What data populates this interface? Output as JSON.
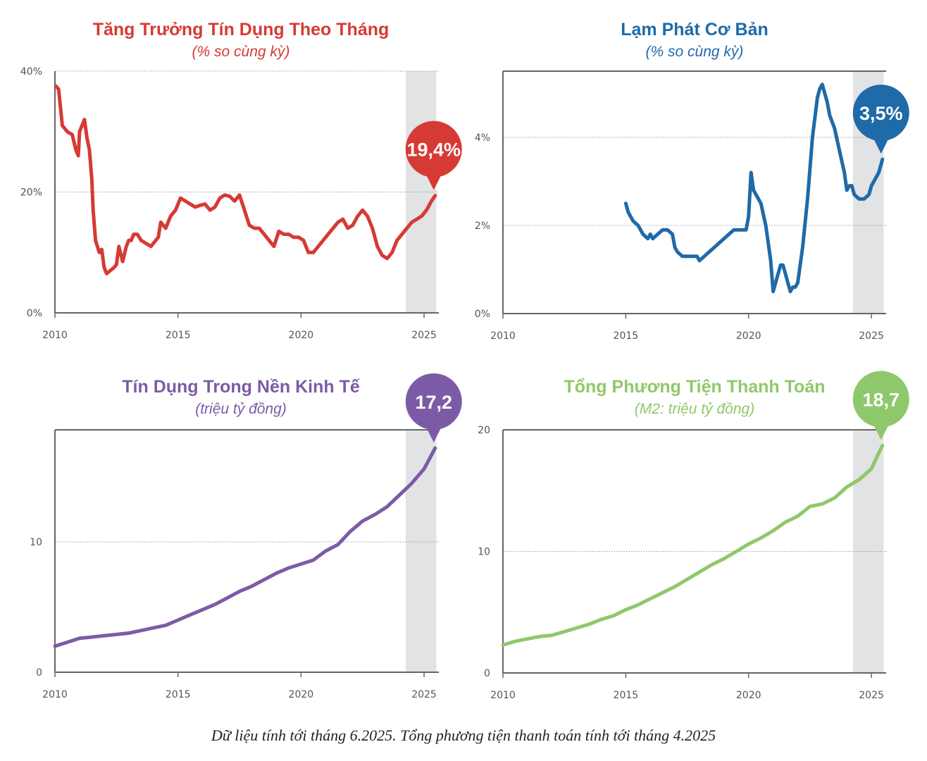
{
  "footnote": "Dữ liệu tính tới tháng 6.2025. Tổng phương tiện thanh toán tính tới tháng 4.2025",
  "chart_data": [
    {
      "type": "line",
      "title": "Tăng Trưởng Tín Dụng Theo Tháng",
      "subtitle": "(% so cùng kỳ)",
      "color": "#d63a34",
      "xlim": [
        2010,
        2025.6
      ],
      "ylim": [
        0,
        40
      ],
      "xticks": [
        2010,
        2015,
        2020,
        2025
      ],
      "yticks": [
        0,
        20,
        40
      ],
      "ytick_labels": [
        "0%",
        "20%",
        "40%"
      ],
      "gridlines": [
        20,
        40
      ],
      "shaded_period": [
        2024.25,
        2025.5
      ],
      "callout": {
        "label": "19,4%",
        "x": 2025.45,
        "y": 19.4
      },
      "series": [
        {
          "x": [
            2010.05,
            2010.15,
            2010.3,
            2010.5,
            2010.7,
            2010.85,
            2010.95,
            2011.0,
            2011.2,
            2011.3,
            2011.4,
            2011.5,
            2011.55,
            2011.65,
            2011.8,
            2011.9,
            2012.0,
            2012.1,
            2012.25,
            2012.4,
            2012.5,
            2012.6,
            2012.75,
            2012.9,
            2013.0,
            2013.1,
            2013.2,
            2013.35,
            2013.5,
            2013.7,
            2013.9,
            2014.0,
            2014.1,
            2014.2,
            2014.3,
            2014.5,
            2014.7,
            2014.9,
            2015.1,
            2015.3,
            2015.5,
            2015.7,
            2015.9,
            2016.1,
            2016.3,
            2016.5,
            2016.7,
            2016.9,
            2017.1,
            2017.3,
            2017.5,
            2017.7,
            2017.9,
            2018.1,
            2018.3,
            2018.5,
            2018.7,
            2018.9,
            2019.1,
            2019.3,
            2019.5,
            2019.7,
            2019.9,
            2020.1,
            2020.3,
            2020.5,
            2020.7,
            2020.9,
            2021.1,
            2021.3,
            2021.5,
            2021.7,
            2021.9,
            2022.1,
            2022.3,
            2022.5,
            2022.7,
            2022.9,
            2023.1,
            2023.3,
            2023.5,
            2023.7,
            2023.9,
            2024.1,
            2024.3,
            2024.5,
            2024.7,
            2024.9,
            2025.1,
            2025.3,
            2025.45
          ],
          "y": [
            37.5,
            37,
            31,
            30,
            29.5,
            27,
            26,
            30,
            32,
            29,
            27,
            22,
            17,
            12,
            10,
            10.5,
            7.5,
            6.5,
            7,
            7.5,
            8,
            11,
            8.5,
            11,
            12,
            12,
            13,
            13,
            12,
            11.5,
            11,
            11.5,
            12,
            12.5,
            15,
            14,
            16,
            17,
            19,
            18.5,
            18,
            17.5,
            17.8,
            18,
            17,
            17.5,
            19,
            19.5,
            19.3,
            18.5,
            19.5,
            17,
            14.5,
            14,
            14,
            13,
            12,
            11,
            13.5,
            13,
            13,
            12.5,
            12.5,
            12,
            10,
            10,
            11,
            12,
            13,
            14,
            15,
            15.5,
            14,
            14.5,
            16,
            17,
            16,
            14,
            11,
            9.5,
            9,
            10,
            12,
            13,
            14,
            15,
            15.5,
            16,
            17,
            18.5,
            19.4
          ]
        }
      ]
    },
    {
      "type": "line",
      "title": "Lạm Phát Cơ Bản",
      "subtitle": "(% so cùng kỳ)",
      "color": "#1f6aa8",
      "xlim": [
        2010,
        2025.6
      ],
      "ylim": [
        0,
        5.5
      ],
      "xticks": [
        2010,
        2015,
        2020,
        2025
      ],
      "yticks": [
        0,
        2,
        4
      ],
      "ytick_labels": [
        "0%",
        "2%",
        "4%"
      ],
      "gridlines": [
        2,
        4
      ],
      "shaded_period": [
        2024.25,
        2025.5
      ],
      "callout": {
        "label": "3,5%",
        "x": 2025.45,
        "y": 3.5
      },
      "series": [
        {
          "x": [
            2015.0,
            2015.1,
            2015.2,
            2015.3,
            2015.5,
            2015.7,
            2015.9,
            2016.0,
            2016.1,
            2016.3,
            2016.5,
            2016.7,
            2016.9,
            2017.0,
            2017.1,
            2017.3,
            2017.5,
            2017.7,
            2017.9,
            2018.0,
            2018.2,
            2018.4,
            2018.6,
            2018.8,
            2019.0,
            2019.2,
            2019.4,
            2019.6,
            2019.8,
            2019.9,
            2020.0,
            2020.1,
            2020.2,
            2020.3,
            2020.5,
            2020.7,
            2020.8,
            2020.9,
            2021.0,
            2021.1,
            2021.2,
            2021.3,
            2021.4,
            2021.5,
            2021.6,
            2021.7,
            2021.8,
            2021.9,
            2022.0,
            2022.2,
            2022.4,
            2022.6,
            2022.8,
            2022.9,
            2023.0,
            2023.1,
            2023.2,
            2023.3,
            2023.5,
            2023.7,
            2023.9,
            2024.0,
            2024.1,
            2024.2,
            2024.3,
            2024.5,
            2024.7,
            2024.9,
            2025.0,
            2025.1,
            2025.2,
            2025.3,
            2025.45
          ],
          "y": [
            2.5,
            2.3,
            2.2,
            2.1,
            2.0,
            1.8,
            1.7,
            1.8,
            1.7,
            1.8,
            1.9,
            1.9,
            1.8,
            1.5,
            1.4,
            1.3,
            1.3,
            1.3,
            1.3,
            1.2,
            1.3,
            1.4,
            1.5,
            1.6,
            1.7,
            1.8,
            1.9,
            1.9,
            1.9,
            1.9,
            2.2,
            3.2,
            2.8,
            2.7,
            2.5,
            2.0,
            1.6,
            1.2,
            0.5,
            0.7,
            0.9,
            1.1,
            1.1,
            0.9,
            0.7,
            0.5,
            0.6,
            0.6,
            0.7,
            1.5,
            2.6,
            4.0,
            4.9,
            5.1,
            5.2,
            5.0,
            4.8,
            4.5,
            4.2,
            3.7,
            3.2,
            2.8,
            2.9,
            2.9,
            2.7,
            2.6,
            2.6,
            2.7,
            2.9,
            3.0,
            3.1,
            3.2,
            3.5
          ]
        }
      ]
    },
    {
      "type": "line",
      "title": "Tín Dụng Trong Nền Kinh Tế",
      "subtitle": "(triệu tỷ đồng)",
      "color": "#7c5ba6",
      "xlim": [
        2010,
        2025.6
      ],
      "ylim": [
        0,
        18.6
      ],
      "xticks": [
        2010,
        2015,
        2020,
        2025
      ],
      "yticks": [
        0,
        10
      ],
      "ytick_labels": [
        "0",
        "10"
      ],
      "gridlines": [
        10
      ],
      "shaded_period": [
        2024.25,
        2025.5
      ],
      "callout": {
        "label": "17,2",
        "x": 2025.45,
        "y": 17.2
      },
      "series": [
        {
          "x": [
            2010.0,
            2010.5,
            2011.0,
            2011.5,
            2012.0,
            2012.5,
            2013.0,
            2013.5,
            2014.0,
            2014.5,
            2015.0,
            2015.5,
            2016.0,
            2016.5,
            2017.0,
            2017.5,
            2018.0,
            2018.5,
            2019.0,
            2019.5,
            2020.0,
            2020.5,
            2021.0,
            2021.5,
            2022.0,
            2022.5,
            2023.0,
            2023.5,
            2024.0,
            2024.5,
            2025.0,
            2025.45
          ],
          "y": [
            2.0,
            2.3,
            2.6,
            2.7,
            2.8,
            2.9,
            3.0,
            3.2,
            3.4,
            3.6,
            4.0,
            4.4,
            4.8,
            5.2,
            5.7,
            6.2,
            6.6,
            7.1,
            7.6,
            8.0,
            8.3,
            8.6,
            9.3,
            9.8,
            10.8,
            11.6,
            12.1,
            12.7,
            13.6,
            14.5,
            15.6,
            17.2
          ]
        }
      ]
    },
    {
      "type": "line",
      "title": "Tổng Phương Tiện Thanh Toán",
      "subtitle": "(M2: triệu tỷ đồng)",
      "color": "#8fc86b",
      "xlim": [
        2010,
        2025.6
      ],
      "ylim": [
        0,
        20
      ],
      "xticks": [
        2010,
        2015,
        2020,
        2025
      ],
      "yticks": [
        0,
        10,
        20
      ],
      "ytick_labels": [
        "0",
        "10",
        "20"
      ],
      "gridlines": [
        10,
        20
      ],
      "shaded_period": [
        2024.25,
        2025.5
      ],
      "callout": {
        "label": "18,7",
        "x": 2025.45,
        "y": 18.7
      },
      "series": [
        {
          "x": [
            2010.0,
            2010.5,
            2011.0,
            2011.5,
            2012.0,
            2012.5,
            2013.0,
            2013.5,
            2014.0,
            2014.5,
            2015.0,
            2015.5,
            2016.0,
            2016.5,
            2017.0,
            2017.5,
            2018.0,
            2018.5,
            2019.0,
            2019.5,
            2020.0,
            2020.5,
            2021.0,
            2021.5,
            2022.0,
            2022.5,
            2023.0,
            2023.5,
            2024.0,
            2024.5,
            2025.0,
            2025.3,
            2025.45
          ],
          "y": [
            2.3,
            2.6,
            2.8,
            3.0,
            3.1,
            3.4,
            3.7,
            4.0,
            4.4,
            4.7,
            5.2,
            5.6,
            6.1,
            6.6,
            7.1,
            7.7,
            8.3,
            8.9,
            9.4,
            10.0,
            10.6,
            11.1,
            11.7,
            12.4,
            12.9,
            13.7,
            13.9,
            14.4,
            15.3,
            15.9,
            16.8,
            18.1,
            18.7
          ]
        }
      ]
    }
  ]
}
